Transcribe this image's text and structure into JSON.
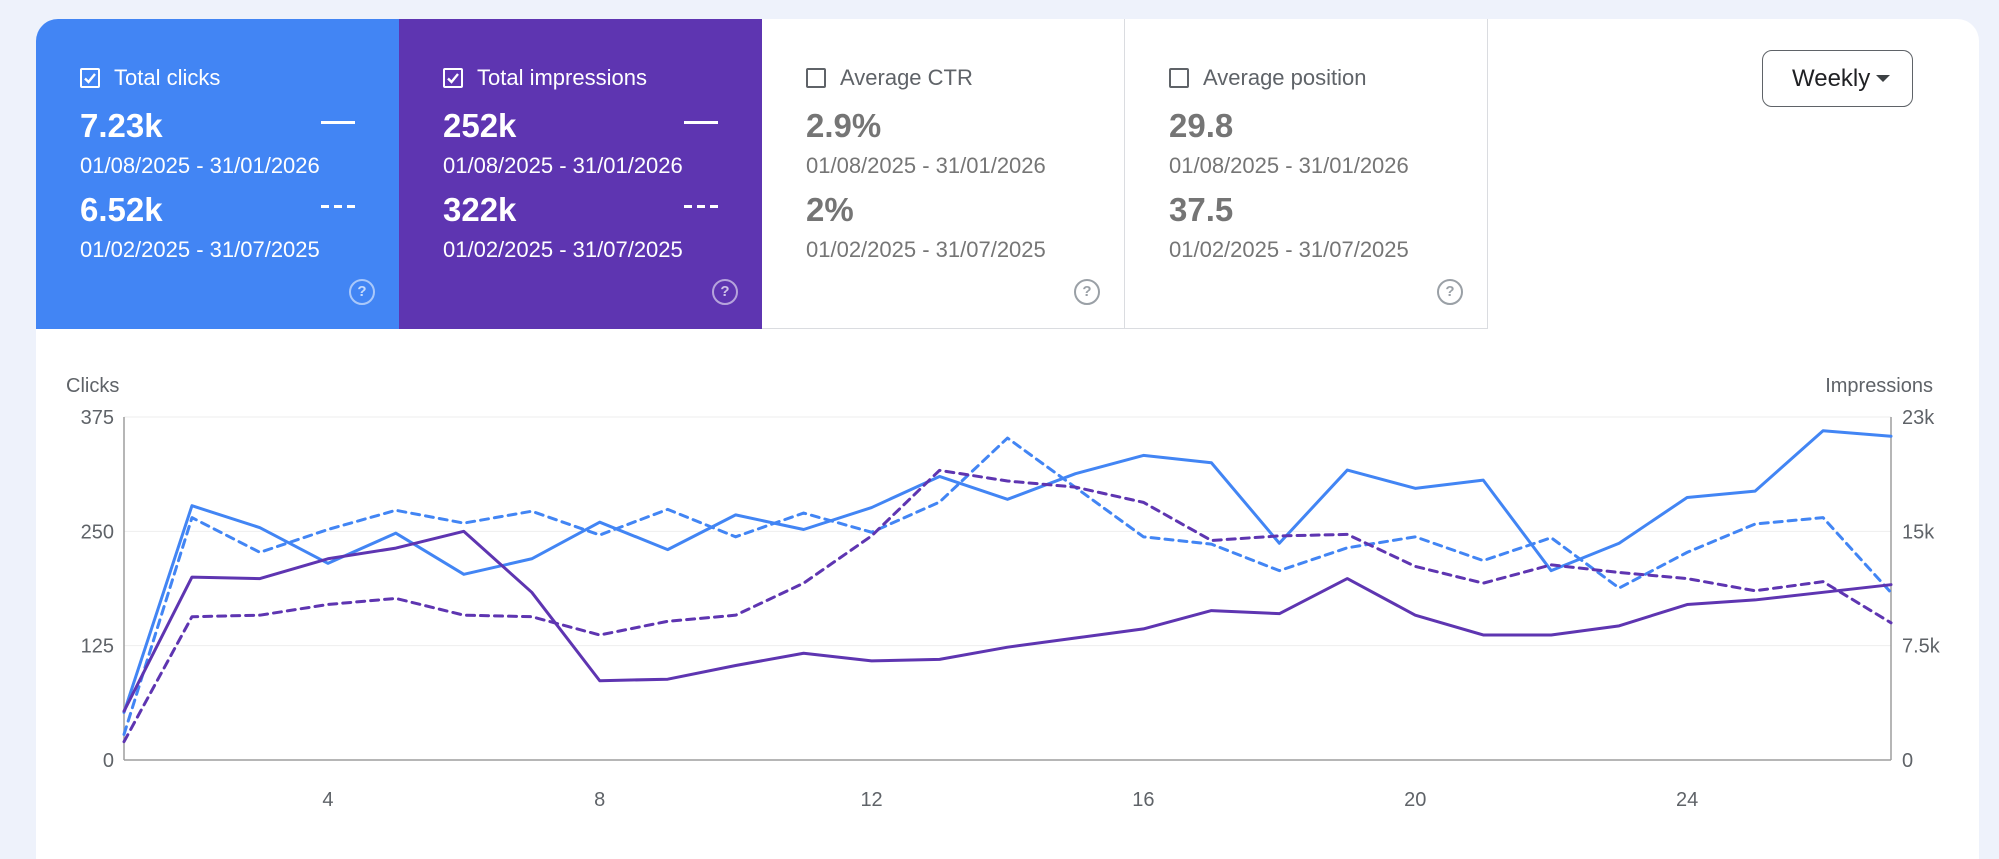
{
  "cards": [
    {
      "key": "clicks",
      "label": "Total clicks",
      "checked": true,
      "current_value": "7.23k",
      "current_range": "01/08/2025 - 31/01/2026",
      "previous_value": "6.52k",
      "previous_range": "01/02/2025 - 31/07/2025",
      "color": "#4285f4"
    },
    {
      "key": "impressions",
      "label": "Total impressions",
      "checked": true,
      "current_value": "252k",
      "current_range": "01/08/2025 - 31/01/2026",
      "previous_value": "322k",
      "previous_range": "01/02/2025 - 31/07/2025",
      "color": "#5e35b1"
    },
    {
      "key": "ctr",
      "label": "Average CTR",
      "checked": false,
      "current_value": "2.9%",
      "current_range": "01/08/2025 - 31/01/2026",
      "previous_value": "2%",
      "previous_range": "01/02/2025 - 31/07/2025"
    },
    {
      "key": "position",
      "label": "Average position",
      "checked": false,
      "current_value": "29.8",
      "current_range": "01/08/2025 - 31/01/2026",
      "previous_value": "37.5",
      "previous_range": "01/02/2025 - 31/07/2025"
    }
  ],
  "period_selector": {
    "value": "Weekly"
  },
  "help_glyph": "?",
  "chart_data": {
    "type": "line",
    "ylabel_left": "Clicks",
    "ylabel_right": "Impressions",
    "y_left_range": [
      0,
      375
    ],
    "y_right_range": [
      0,
      22500
    ],
    "y_left_ticks": [
      "0",
      "125",
      "250",
      "375"
    ],
    "y_right_ticks": [
      "0",
      "7.5k",
      "15k",
      "23k"
    ],
    "x_range": [
      1,
      27
    ],
    "x_ticks": [
      4,
      8,
      12,
      16,
      20,
      24
    ],
    "grid": true,
    "x": [
      1,
      2,
      3,
      4,
      5,
      6,
      7,
      8,
      9,
      10,
      11,
      12,
      13,
      14,
      15,
      16,
      17,
      18,
      19,
      20,
      21,
      22,
      23,
      24,
      25,
      26,
      27
    ],
    "series": [
      {
        "name": "Total clicks",
        "axis": "left",
        "style": "solid",
        "color": "#4285f4",
        "values": [
          52,
          278,
          254,
          215,
          248,
          203,
          220,
          260,
          230,
          268,
          252,
          276,
          310,
          285,
          313,
          333,
          325,
          237,
          317,
          297,
          306,
          207,
          237,
          287,
          294,
          360,
          354
        ]
      },
      {
        "name": "Total clicks",
        "axis": "left",
        "style": "dashed",
        "color": "#4285f4",
        "values": [
          28,
          265,
          227,
          252,
          273,
          259,
          272,
          246,
          274,
          244,
          270,
          249,
          282,
          352,
          298,
          244,
          236,
          207,
          232,
          244,
          218,
          243,
          188,
          227,
          258,
          265,
          183
        ]
      },
      {
        "name": "Total impressions",
        "axis": "right",
        "style": "solid",
        "color": "#5e35b1",
        "values": [
          3200,
          12000,
          11900,
          13200,
          13900,
          15000,
          11000,
          5200,
          5300,
          6200,
          7000,
          6500,
          6600,
          7400,
          8000,
          8600,
          9800,
          9600,
          11900,
          9500,
          8200,
          8200,
          8800,
          10200,
          10500,
          11000,
          11500
        ]
      },
      {
        "name": "Total impressions",
        "axis": "right",
        "style": "dashed",
        "color": "#5e35b1",
        "values": [
          1200,
          9400,
          9500,
          10200,
          10600,
          9500,
          9400,
          8200,
          9100,
          9500,
          11600,
          14700,
          19000,
          18300,
          17900,
          16900,
          14400,
          14700,
          14800,
          12700,
          11600,
          12800,
          12300,
          11900,
          11100,
          11700,
          9000
        ]
      }
    ]
  }
}
